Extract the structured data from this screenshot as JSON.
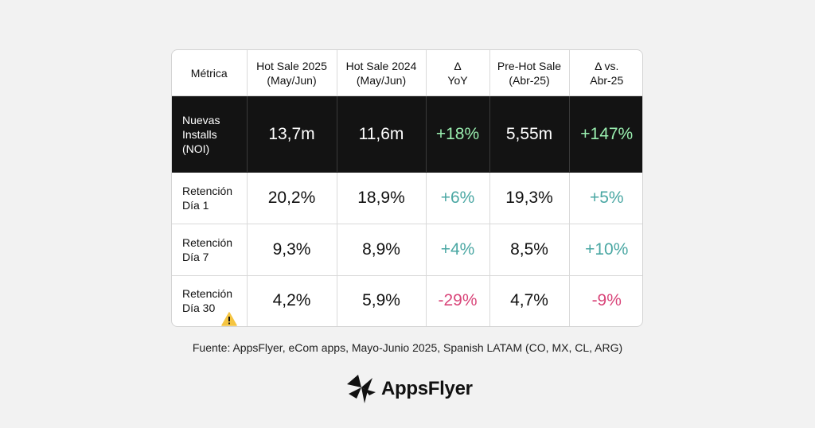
{
  "chart_data": {
    "type": "table",
    "columns": [
      "Métrica",
      "Hot Sale 2025\n(May/Jun)",
      "Hot Sale 2024\n(May/Jun)",
      "Δ\nYoY",
      "Pre-Hot Sale\n(Abr-25)",
      "Δ vs.\nAbr-25"
    ],
    "rows": [
      {
        "metric": "Nuevas\nInstalls\n(NOI)",
        "hot_sale_2025": "13,7m",
        "hot_sale_2024": "11,6m",
        "delta_yoy": "+18%",
        "pre_hot_sale": "5,55m",
        "delta_abr": "+147%"
      },
      {
        "metric": "Retención\nDía 1",
        "hot_sale_2025": "20,2%",
        "hot_sale_2024": "18,9%",
        "delta_yoy": "+6%",
        "pre_hot_sale": "19,3%",
        "delta_abr": "+5%"
      },
      {
        "metric": "Retención\nDía 7",
        "hot_sale_2025": "9,3%",
        "hot_sale_2024": "8,9%",
        "delta_yoy": "+4%",
        "pre_hot_sale": "8,5%",
        "delta_abr": "+10%"
      },
      {
        "metric": "Retención\nDía 30",
        "hot_sale_2025": "4,2%",
        "hot_sale_2024": "5,9%",
        "delta_yoy": "-29%",
        "pre_hot_sale": "4,7%",
        "delta_abr": "-9%"
      }
    ]
  },
  "row_icons": {
    "retencion_dia_30": "warning-icon"
  },
  "colors": {
    "highlight_row_bg": "#131313",
    "positive_delta": "#4aa7a3",
    "positive_delta_highlight": "#9aefb0",
    "negative_delta": "#d9467a",
    "warning": "#f5c542"
  },
  "source_text": "Fuente: AppsFlyer, eCom apps, Mayo-Junio 2025, Spanish LATAM (CO, MX, CL, ARG)",
  "logo": {
    "text": "AppsFlyer",
    "icon": "appsflyer-logo-icon"
  }
}
